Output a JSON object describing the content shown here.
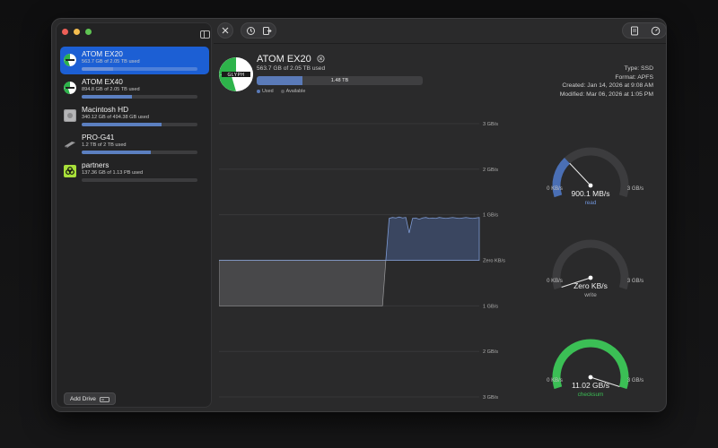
{
  "sidebar": {
    "drives": [
      {
        "name": "ATOM EX20",
        "usage": "563.7 GB of 2.05 TB used",
        "fraction": 0.275,
        "selected": true
      },
      {
        "name": "ATOM EX40",
        "usage": "894.8 GB of 2.05 TB used",
        "fraction": 0.436,
        "selected": false
      },
      {
        "name": "Macintosh HD",
        "usage": "340.12 GB of 494.38 GB used",
        "fraction": 0.688,
        "selected": false
      },
      {
        "name": "PRO-G41",
        "usage": "1.2 TB of 2 TB used",
        "fraction": 0.6,
        "selected": false
      },
      {
        "name": "partners",
        "usage": "137.36 GB of 1.13 PB used",
        "fraction": 0.0001,
        "selected": false
      }
    ],
    "add_drive_label": "Add Drive"
  },
  "detail": {
    "title": "ATOM EX20",
    "subtitle": "563.7 GB of 2.05 TB used",
    "usage_bar_label": "1.48 TB",
    "usage_fraction": 0.275,
    "legend_used": "Used",
    "legend_available": "Available",
    "type": "Type: SSD",
    "format": "Format: APFS",
    "created": "Created: Jan 14, 2026 at 9:08 AM",
    "modified": "Modified: Mar 06, 2026 at 1:05 PM"
  },
  "chart_data": {
    "type": "area",
    "y_tick_labels": [
      "3 GB/s",
      "2 GB/s",
      "1 GB/s",
      "Zero KB/s",
      "1 GB/s",
      "2 GB/s",
      "3 GB/s"
    ],
    "ylim": [
      -3,
      3
    ],
    "series": [
      {
        "values_above": [
          0,
          0,
          0,
          0,
          0,
          0,
          0,
          0,
          0,
          0,
          0,
          0,
          0,
          0,
          0,
          0,
          0,
          0,
          0,
          0,
          0,
          0,
          0,
          0,
          0,
          0,
          0,
          0,
          0,
          0,
          0,
          0,
          0,
          0,
          0,
          0,
          0,
          0,
          0,
          0,
          0,
          0,
          0,
          0,
          0,
          0,
          0,
          0,
          0,
          0,
          0,
          0.92,
          0.94,
          0.93,
          0.95,
          0.93,
          0.94,
          0.6,
          0.92,
          0.93,
          0.9,
          0.93,
          0.94,
          0.92,
          0.93,
          0.92,
          0.94,
          0.93,
          0.92,
          0.93,
          0.94,
          0.93,
          0.92,
          0.93,
          0.94,
          0.93,
          0.92,
          0.93,
          0.94
        ]
      },
      {
        "values_below": [
          1,
          1,
          1,
          1,
          1,
          1,
          1,
          1,
          1,
          1,
          1,
          1,
          1,
          1,
          1,
          1,
          1,
          1,
          1,
          1,
          1,
          1,
          1,
          1,
          1,
          1,
          1,
          1,
          1,
          1,
          1,
          1,
          1,
          1,
          1,
          1,
          1,
          1,
          1,
          1,
          1,
          1,
          1,
          1,
          1,
          1,
          1,
          1,
          1,
          1,
          0,
          0,
          0,
          0,
          0,
          0,
          0,
          0,
          0,
          0,
          0,
          0,
          0,
          0,
          0,
          0,
          0,
          0,
          0,
          0,
          0,
          0,
          0,
          0,
          0,
          0,
          0,
          0,
          0
        ]
      }
    ]
  },
  "gauges": [
    {
      "value_label": "900.1 MB/s",
      "caption": "read",
      "min_label": "0 KB/s",
      "max_label": "3 GB/s",
      "fraction": 0.3,
      "color": "#4a6fb5",
      "caption_color": "#6f93d8"
    },
    {
      "value_label": "Zero KB/s",
      "caption": "write",
      "min_label": "0 KB/s",
      "max_label": "3 GB/s",
      "fraction": 0.0,
      "color": "#4a6fb5",
      "caption_color": "#b0b0b0"
    },
    {
      "value_label": "11.02 GB/s",
      "caption": "checksum",
      "min_label": "0 KB/s",
      "max_label": "3 GB/s",
      "fraction": 1.0,
      "color": "#3bbf55",
      "caption_color": "#3bbf55"
    }
  ]
}
